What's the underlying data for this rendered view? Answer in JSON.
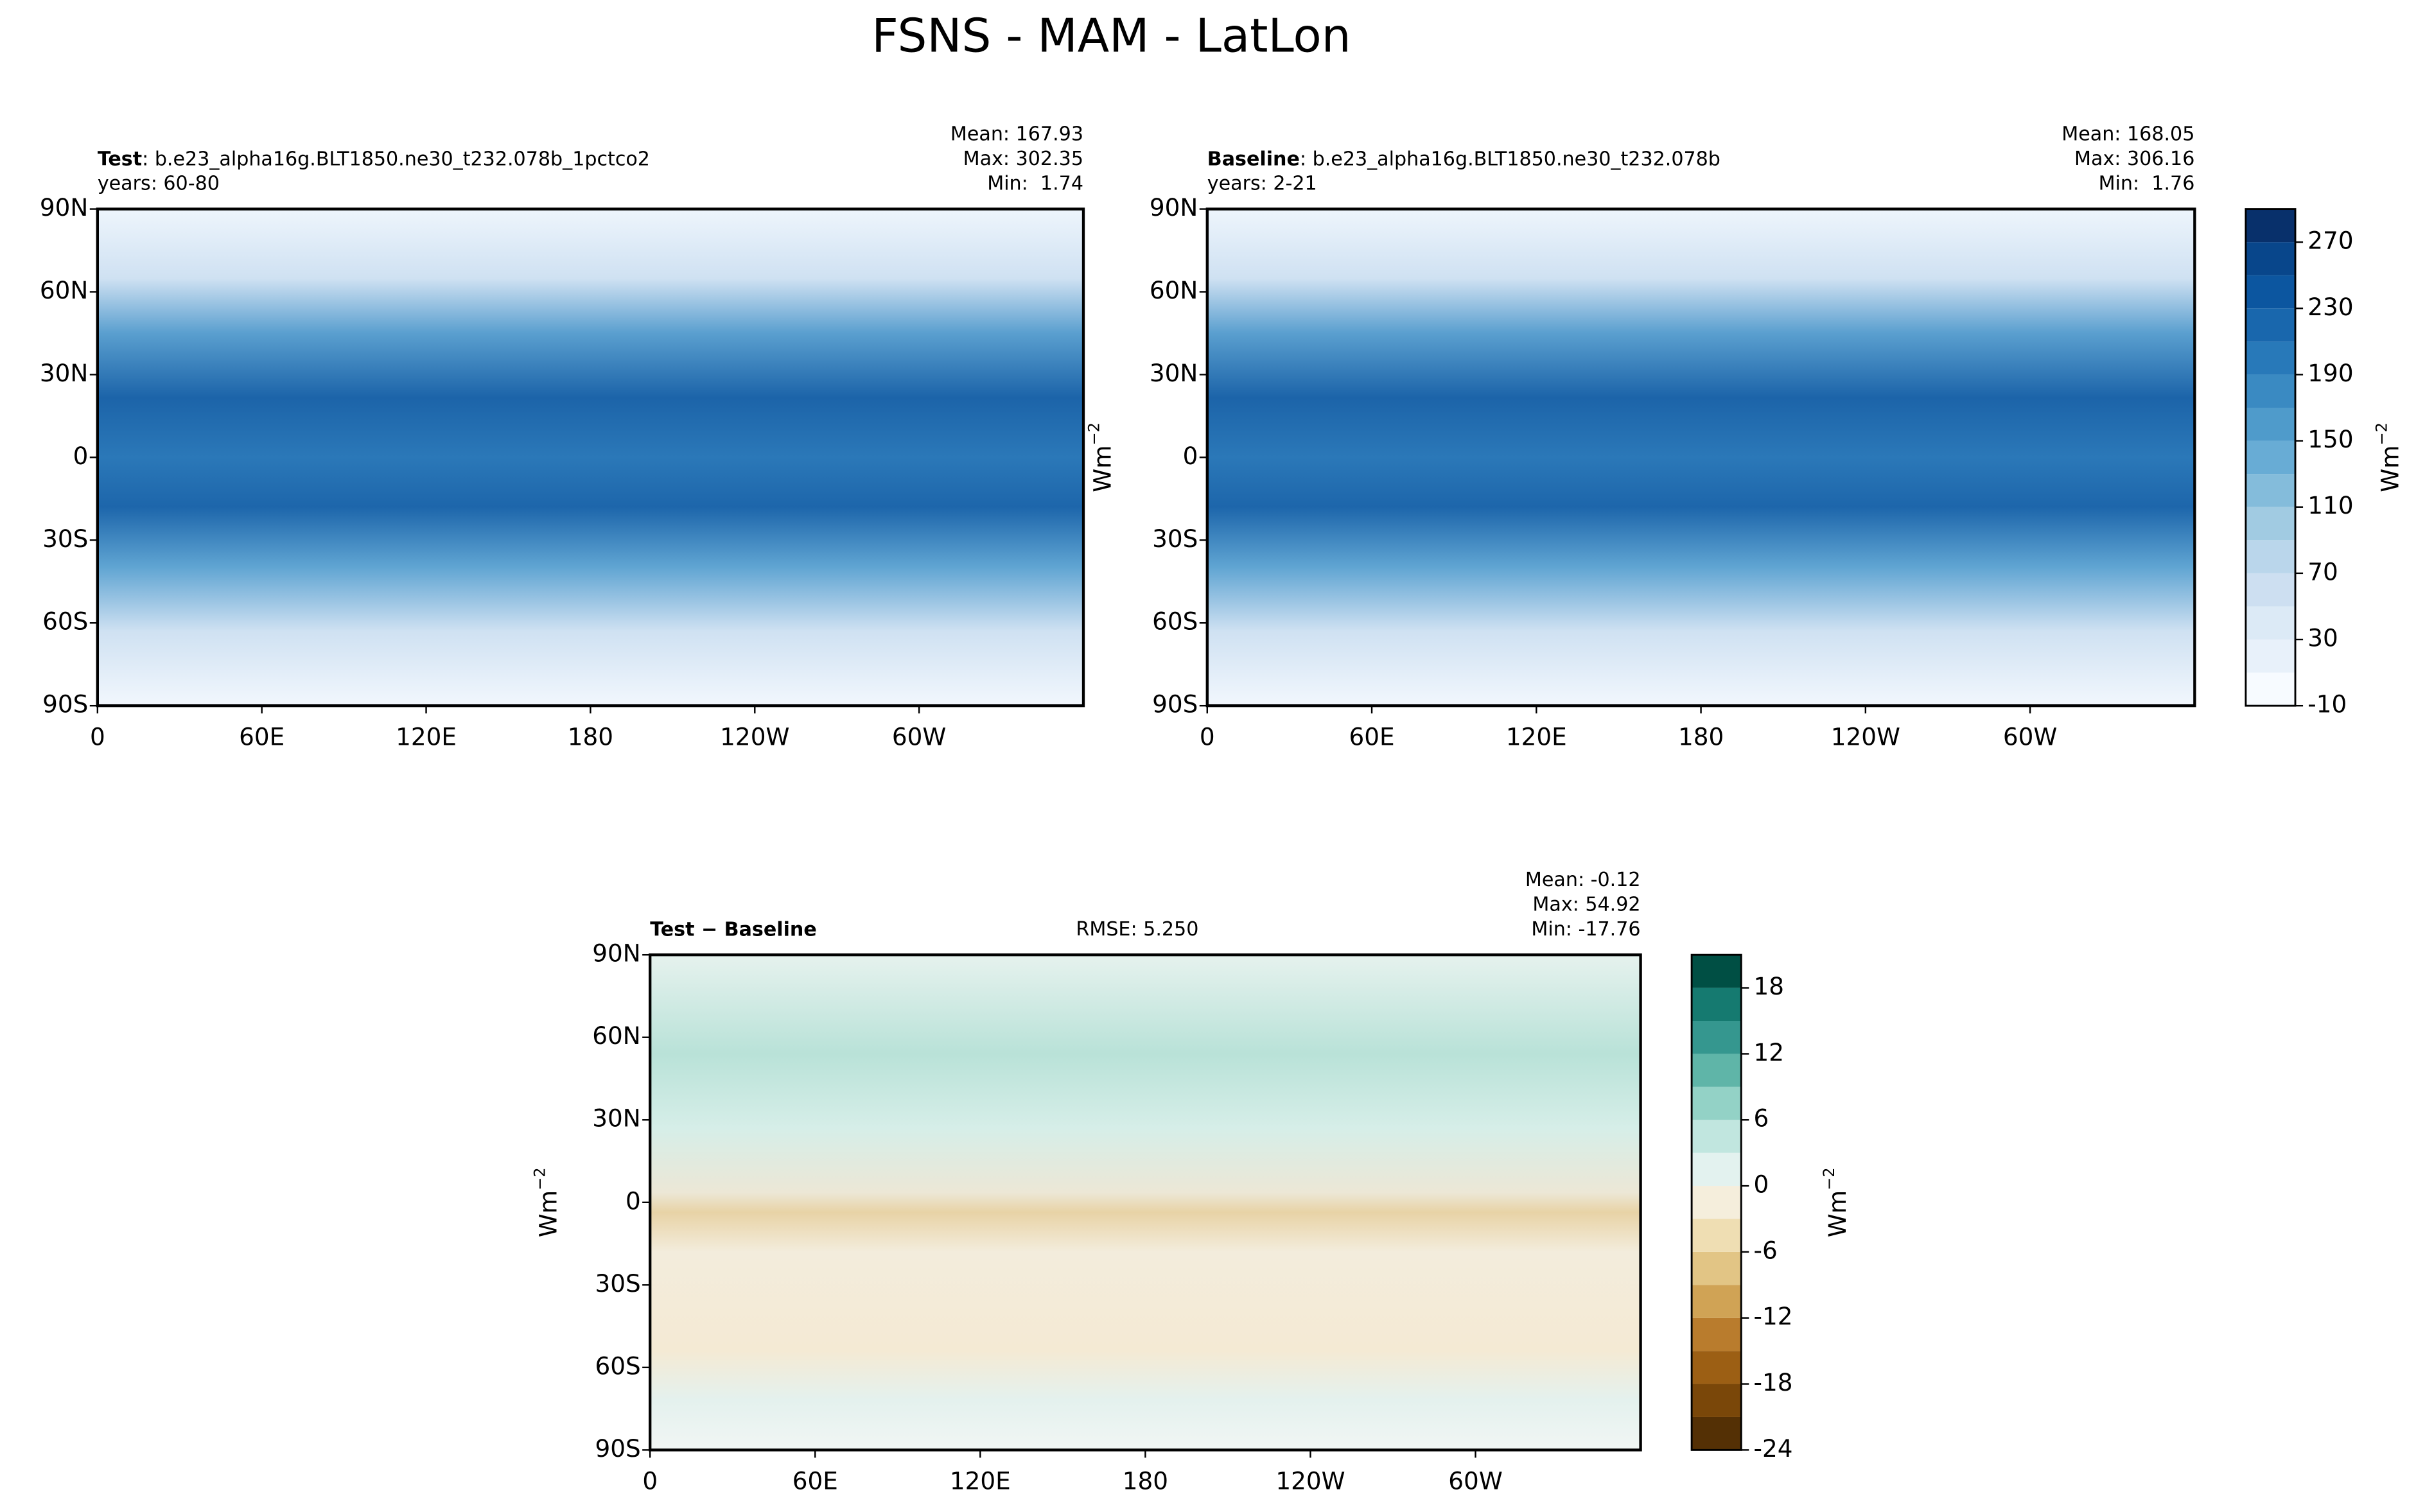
{
  "title": "FSNS - MAM - LatLon",
  "chart_data": [
    {
      "type": "contour",
      "title_bold": "Test",
      "title": ": b.e23_alpha16g.BLT1850.ne30_t232.078b_1pctco2",
      "subtitle": "years: 60-80",
      "stats": [
        "Mean: 167.93",
        "Max: 302.35",
        "Min:  1.74"
      ],
      "xlim": [
        0,
        360
      ],
      "xticks": [
        0,
        {
          "value": 60,
          "label": "60E"
        },
        {
          "value": 120,
          "label": "120E"
        },
        180,
        {
          "value": 240,
          "label": "120W"
        },
        {
          "value": 300,
          "label": "60W"
        }
      ],
      "ylim": [
        -90,
        90
      ],
      "yticks": [
        {
          "value": -90,
          "label": "90S"
        },
        {
          "value": -60,
          "label": "60S"
        },
        {
          "value": -30,
          "label": "30S"
        },
        0,
        {
          "value": 30,
          "label": "30N"
        },
        {
          "value": 60,
          "label": "60N"
        },
        {
          "value": 90,
          "label": "90N"
        }
      ]
    },
    {
      "type": "contour",
      "title_bold": "Baseline",
      "title": ": b.e23_alpha16g.BLT1850.ne30_t232.078b",
      "subtitle": "years: 2-21",
      "stats": [
        "Mean: 168.05",
        "Max: 306.16",
        "Min:  1.76"
      ],
      "ylabel": "Wm",
      "ylabel_exponent": "−2",
      "xlim": [
        0,
        360
      ],
      "xticks": [
        0,
        {
          "value": 60,
          "label": "60E"
        },
        {
          "value": 120,
          "label": "120E"
        },
        180,
        {
          "value": 240,
          "label": "120W"
        },
        {
          "value": 300,
          "label": "60W"
        }
      ],
      "ylim": [
        -90,
        90
      ],
      "yticks": [
        {
          "value": -90,
          "label": "90S"
        },
        {
          "value": -60,
          "label": "60S"
        },
        {
          "value": -30,
          "label": "30S"
        },
        0,
        {
          "value": 30,
          "label": "30N"
        },
        {
          "value": 60,
          "label": "60N"
        },
        {
          "value": 90,
          "label": "90N"
        }
      ],
      "colorbar": {
        "lim": [
          -10,
          290
        ],
        "ticks": [
          -10,
          30,
          70,
          110,
          150,
          190,
          230,
          270
        ],
        "levels": [
          -10,
          10,
          30,
          50,
          70,
          90,
          110,
          130,
          150,
          170,
          190,
          210,
          230,
          250,
          270,
          290
        ],
        "colors": [
          "#f7fbff",
          "#e8f1fa",
          "#dceaf6",
          "#cddff1",
          "#bad6eb",
          "#a1cbe2",
          "#84bcdb",
          "#68acd5",
          "#4f9bcb",
          "#3a8ac2",
          "#2879b9",
          "#1967ad",
          "#0c56a0",
          "#08468b",
          "#08306b"
        ],
        "label": "Wm",
        "label_exponent": "−2"
      }
    },
    {
      "type": "contour",
      "title_bold": "Test − Baseline",
      "annotation": "RMSE: 5.250",
      "stats": [
        "Mean: -0.12",
        "Max: 54.92",
        "Min: -17.76"
      ],
      "ylabel": "Wm",
      "ylabel_exponent": "−2",
      "xlim": [
        0,
        360
      ],
      "xticks": [
        0,
        {
          "value": 60,
          "label": "60E"
        },
        {
          "value": 120,
          "label": "120E"
        },
        180,
        {
          "value": 240,
          "label": "120W"
        },
        {
          "value": 300,
          "label": "60W"
        }
      ],
      "ylim": [
        -90,
        90
      ],
      "yticks": [
        {
          "value": -90,
          "label": "90S"
        },
        {
          "value": -60,
          "label": "60S"
        },
        {
          "value": -30,
          "label": "30S"
        },
        0,
        {
          "value": 30,
          "label": "30N"
        },
        {
          "value": 60,
          "label": "60N"
        },
        {
          "value": 90,
          "label": "90N"
        }
      ],
      "colorbar": {
        "lim": [
          -24,
          21
        ],
        "ticks": [
          -24,
          -18,
          -12,
          -6,
          0,
          6,
          12,
          18
        ],
        "levels": [
          -24,
          -21,
          -18,
          -15,
          -12,
          -9,
          -6,
          -3,
          0,
          3,
          6,
          9,
          12,
          15,
          18,
          21
        ],
        "colors": [
          "#543005",
          "#7a4709",
          "#9c5f14",
          "#b97c2d",
          "#d0a355",
          "#e2c585",
          "#efdeb3",
          "#f5eedc",
          "#e3f2ef",
          "#c1e6df",
          "#93d2c6",
          "#5fb5a8",
          "#35978f",
          "#157a70",
          "#004f44"
        ],
        "label": "Wm",
        "label_exponent": "−2"
      }
    }
  ]
}
